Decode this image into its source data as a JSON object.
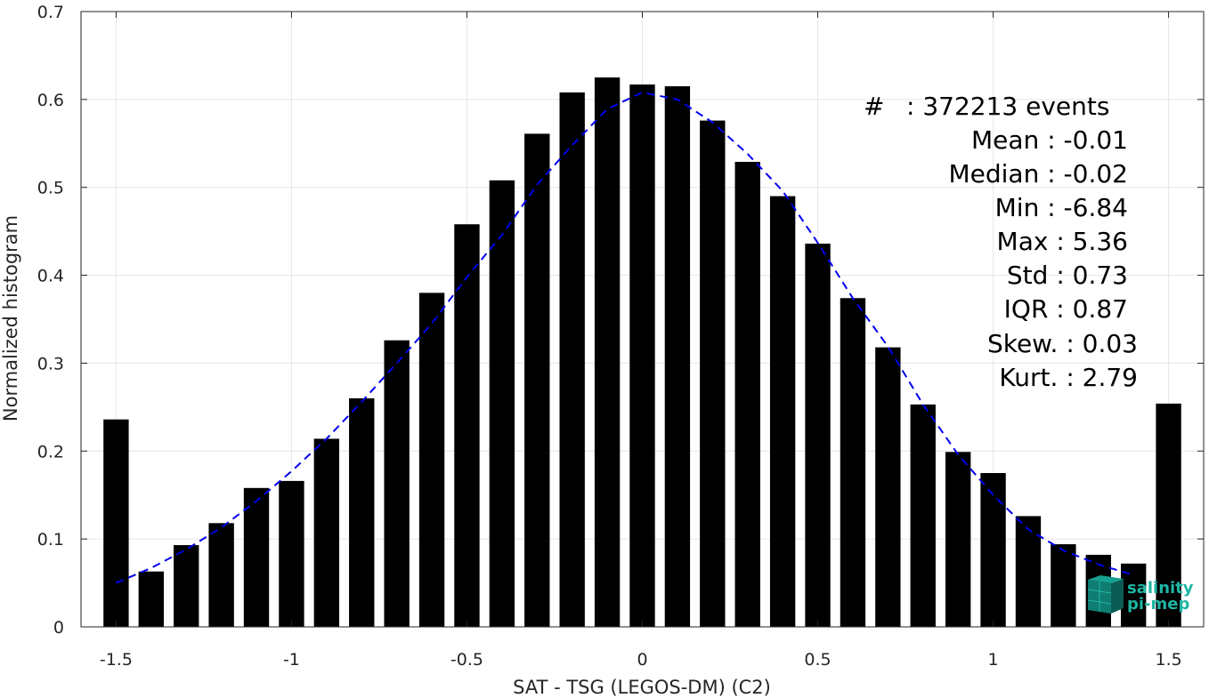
{
  "chart_data": {
    "type": "bar",
    "xlabel": "SAT - TSG (LEGOS-DM) (C2)",
    "ylabel": "Normalized histogram",
    "xlim": [
      -1.6,
      1.6
    ],
    "ylim": [
      0,
      0.7
    ],
    "xticks": [
      -1.5,
      -1,
      -0.5,
      0,
      0.5,
      1,
      1.5
    ],
    "xtick_labels": [
      "-1.5",
      "-1",
      "-0.5",
      "0",
      "0.5",
      "1",
      "1.5"
    ],
    "yticks": [
      0,
      0.1,
      0.2,
      0.3,
      0.4,
      0.5,
      0.6,
      0.7
    ],
    "ytick_labels": [
      "0",
      "0.1",
      "0.2",
      "0.3",
      "0.4",
      "0.5",
      "0.6",
      "0.7"
    ],
    "grid": true,
    "bars": {
      "x": [
        -1.5,
        -1.4,
        -1.3,
        -1.2,
        -1.1,
        -1.0,
        -0.9,
        -0.8,
        -0.7,
        -0.6,
        -0.5,
        -0.4,
        -0.3,
        -0.2,
        -0.1,
        0.0,
        0.1,
        0.2,
        0.3,
        0.4,
        0.5,
        0.6,
        0.7,
        0.8,
        0.9,
        1.0,
        1.1,
        1.2,
        1.3,
        1.4,
        1.5
      ],
      "values": [
        0.236,
        0.063,
        0.093,
        0.118,
        0.158,
        0.166,
        0.214,
        0.26,
        0.326,
        0.38,
        0.458,
        0.508,
        0.561,
        0.608,
        0.625,
        0.617,
        0.615,
        0.576,
        0.529,
        0.49,
        0.436,
        0.374,
        0.318,
        0.253,
        0.199,
        0.175,
        0.126,
        0.094,
        0.082,
        0.072,
        0.254
      ],
      "color": "#000000"
    },
    "fit_curve": {
      "style": "dashed",
      "color": "#0000ee",
      "x": [
        -1.5,
        -1.4,
        -1.3,
        -1.2,
        -1.1,
        -1.0,
        -0.9,
        -0.8,
        -0.7,
        -0.6,
        -0.5,
        -0.4,
        -0.3,
        -0.2,
        -0.1,
        0.0,
        0.1,
        0.2,
        0.3,
        0.4,
        0.5,
        0.6,
        0.7,
        0.8,
        0.9,
        1.0,
        1.1,
        1.2,
        1.3,
        1.4
      ],
      "y": [
        0.05,
        0.067,
        0.088,
        0.113,
        0.143,
        0.177,
        0.214,
        0.256,
        0.3,
        0.345,
        0.398,
        0.446,
        0.503,
        0.548,
        0.589,
        0.608,
        0.6,
        0.574,
        0.538,
        0.496,
        0.437,
        0.374,
        0.319,
        0.253,
        0.196,
        0.15,
        0.111,
        0.087,
        0.071,
        0.059
      ]
    }
  },
  "stats": {
    "count_label": "#",
    "count_value": ": 372213 events",
    "lines": [
      "Mean : -0.01",
      "Median : -0.02",
      "Min : -6.84",
      "Max : 5.36",
      "Std : 0.73",
      "IQR : 0.87",
      "Skew. : 0.03",
      "Kurt. : 2.79"
    ]
  },
  "logo": {
    "line1": "salinity",
    "line2": "pi-mep"
  }
}
